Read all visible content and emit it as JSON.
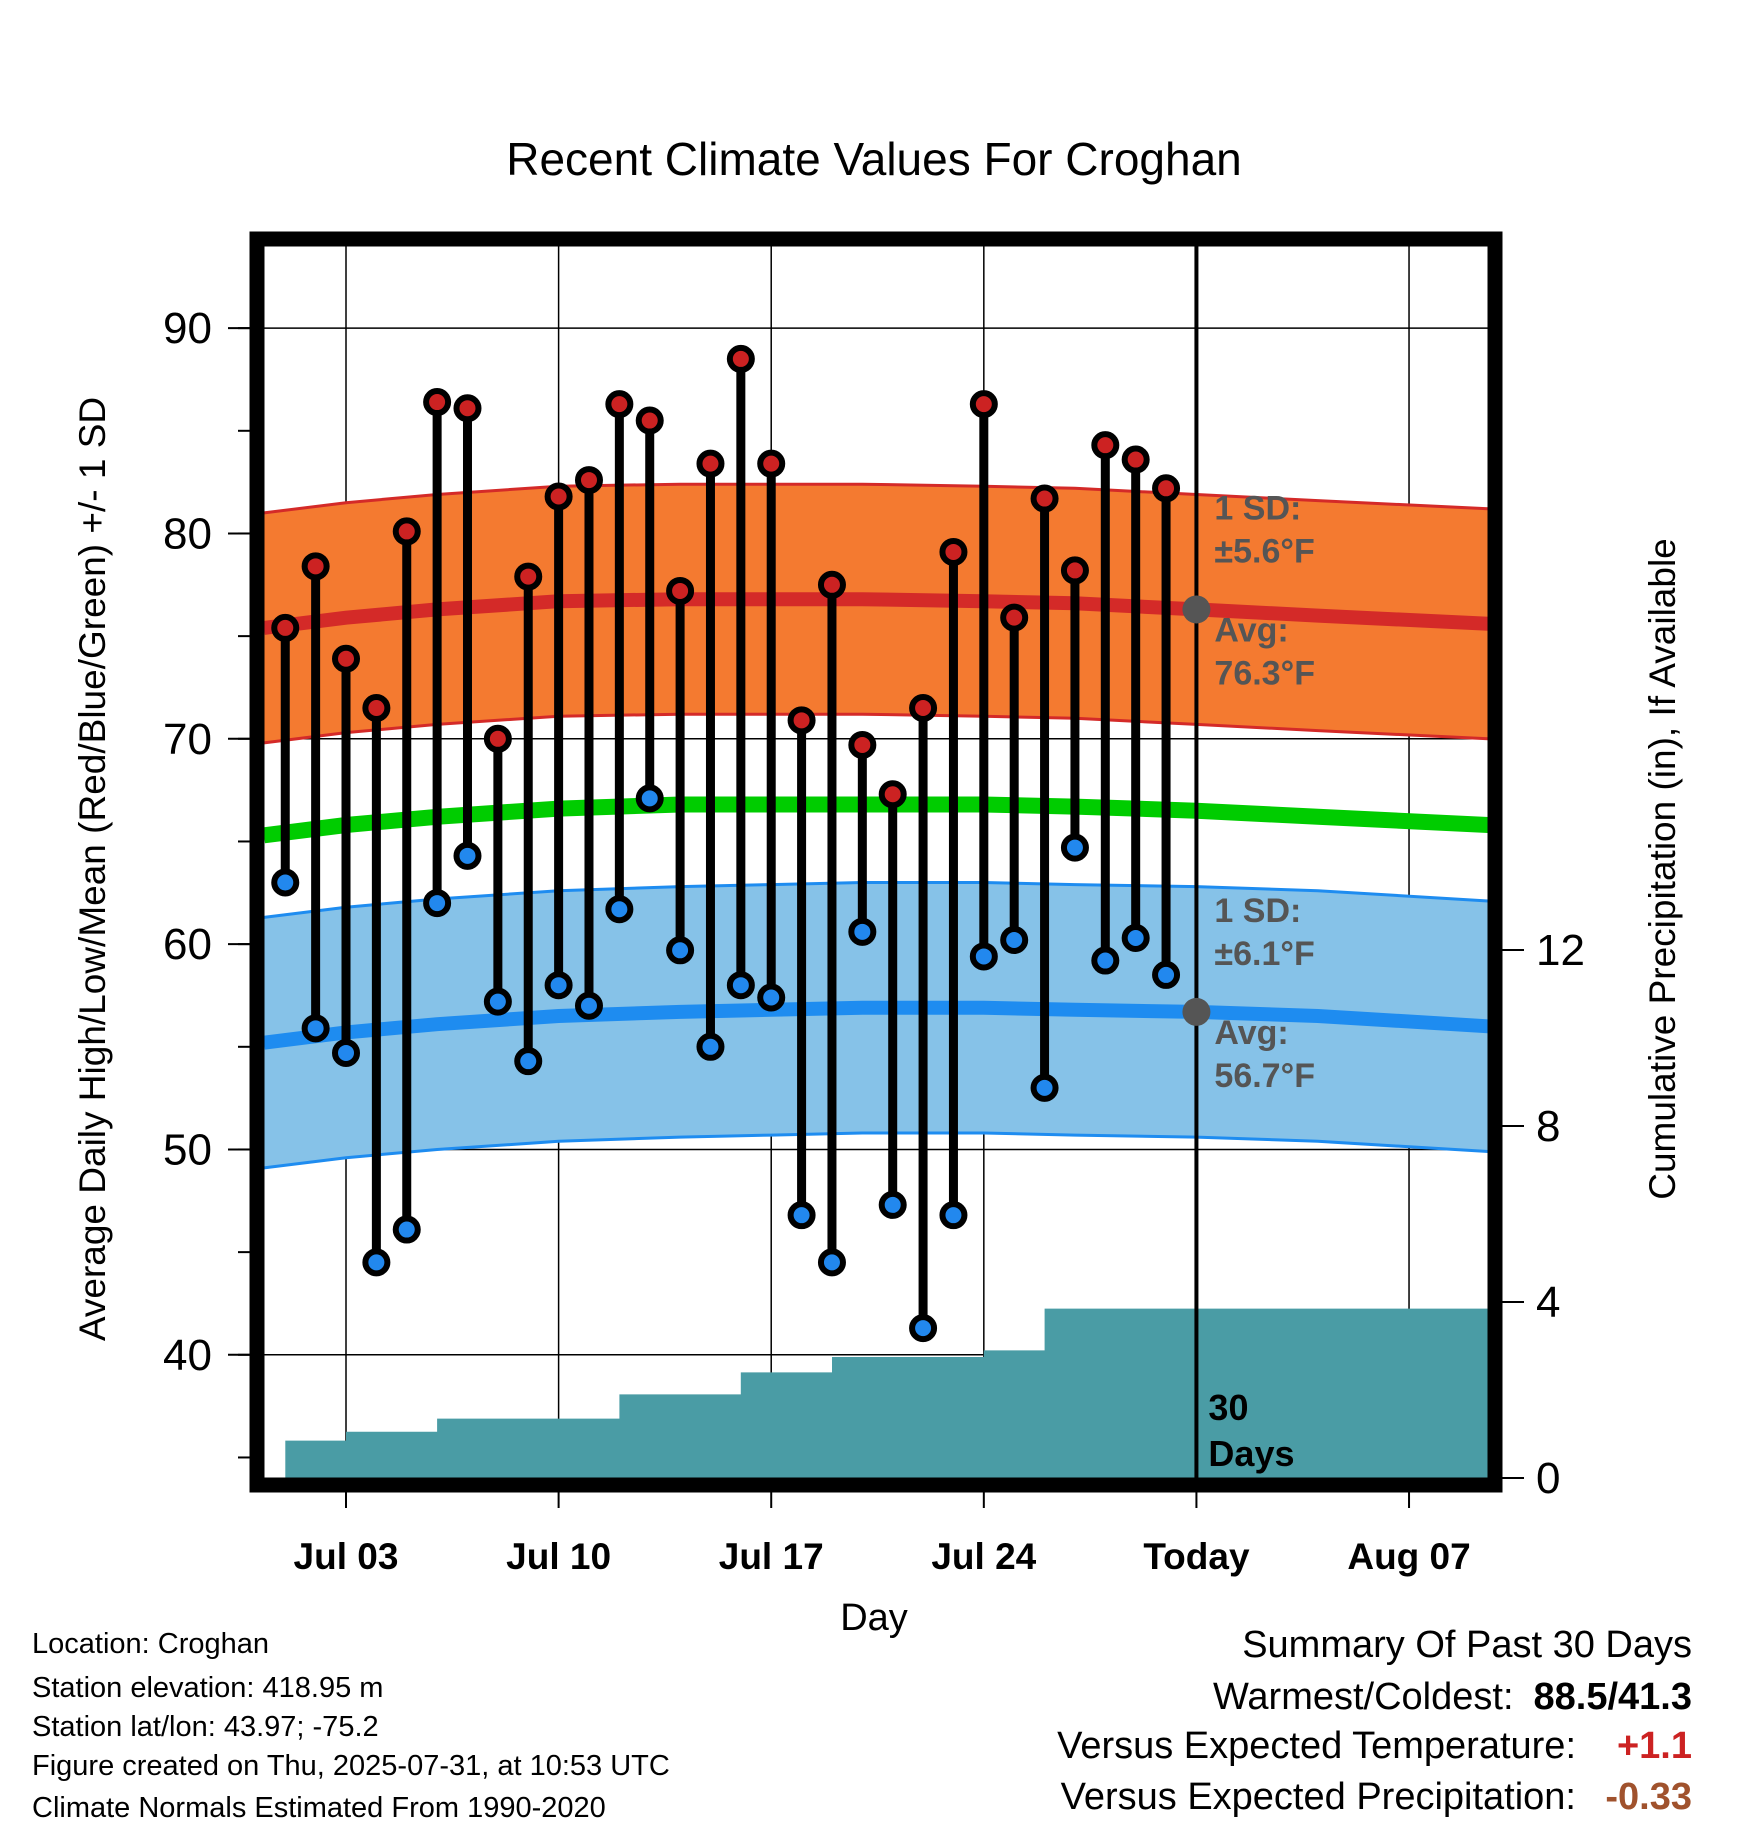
{
  "chart_data": {
    "type": "line",
    "title": "Recent Climate Values For Croghan",
    "xlabel": "Day",
    "ylabel": "Average Daily High/Low/Mean (Red/Blue/Green) +/- 1 SD",
    "y2label": "Cumulative Precipitation (in), If Available",
    "ylim": [
      34,
      94
    ],
    "y2lim": [
      0,
      28
    ],
    "yticks": [
      40,
      50,
      60,
      70,
      80,
      90
    ],
    "y2ticks": [
      0,
      4,
      8,
      12
    ],
    "xticks": [
      {
        "day": 3,
        "label": "Jul 03"
      },
      {
        "day": 10,
        "label": "Jul 10"
      },
      {
        "day": 17,
        "label": "Jul 17"
      },
      {
        "day": 24,
        "label": "Jul 24"
      },
      {
        "day": 31,
        "label": "Today"
      },
      {
        "day": 38,
        "label": "Aug 07"
      }
    ],
    "xrange": [
      0.3,
      40.6
    ],
    "grid": true,
    "days": [
      1,
      2,
      3,
      4,
      5,
      6,
      7,
      8,
      9,
      10,
      11,
      12,
      13,
      14,
      15,
      16,
      17,
      18,
      19,
      20,
      21,
      22,
      23,
      24,
      25,
      26,
      27,
      28,
      29,
      30
    ],
    "observed_high": [
      75.4,
      78.4,
      73.9,
      71.5,
      80.1,
      86.4,
      86.1,
      70.0,
      77.9,
      81.8,
      82.6,
      86.3,
      85.5,
      77.2,
      83.4,
      88.5,
      83.4,
      70.9,
      77.5,
      69.7,
      67.3,
      71.5,
      79.1,
      86.3,
      75.9,
      81.7,
      78.2,
      84.3,
      83.6,
      82.2
    ],
    "observed_low": [
      63.0,
      55.9,
      54.7,
      44.5,
      46.1,
      62.0,
      64.3,
      57.2,
      54.3,
      58.0,
      57.0,
      61.7,
      67.1,
      59.7,
      55.0,
      58.0,
      57.4,
      46.8,
      44.5,
      60.6,
      47.3,
      41.3,
      46.8,
      59.4,
      60.2,
      53.0,
      64.7,
      59.2,
      60.3,
      58.5
    ],
    "normal_x": [
      0.3,
      3,
      6,
      10,
      14,
      17,
      20,
      24,
      27,
      31,
      35,
      40.6
    ],
    "normal_high_avg": [
      75.4,
      75.9,
      76.3,
      76.7,
      76.8,
      76.8,
      76.8,
      76.7,
      76.6,
      76.3,
      76.0,
      75.6
    ],
    "normal_high_sd": 5.6,
    "normal_low_avg": [
      55.2,
      55.7,
      56.1,
      56.5,
      56.7,
      56.8,
      56.9,
      56.9,
      56.8,
      56.7,
      56.5,
      56.0
    ],
    "normal_low_sd": 6.1,
    "normal_mean": [
      65.3,
      65.8,
      66.2,
      66.6,
      66.8,
      66.8,
      66.8,
      66.8,
      66.7,
      66.5,
      66.2,
      65.8
    ],
    "precip_x": [
      0.3,
      1,
      2,
      3,
      4,
      5,
      6,
      7,
      8,
      9,
      10,
      11,
      12,
      13,
      14,
      15,
      16,
      17,
      18,
      19,
      20,
      21,
      22,
      23,
      24,
      25,
      26,
      27,
      28,
      29,
      30,
      31,
      40.6
    ],
    "precip_cumulative": [
      0,
      0.85,
      0.85,
      1.05,
      1.05,
      1.05,
      1.35,
      1.35,
      1.35,
      1.35,
      1.35,
      1.35,
      1.9,
      1.9,
      1.9,
      1.9,
      2.4,
      2.4,
      2.4,
      2.75,
      2.75,
      2.75,
      2.75,
      2.75,
      2.9,
      2.9,
      3.85,
      3.85,
      3.85,
      3.85,
      3.85,
      3.85,
      3.85
    ],
    "annotations": {
      "high_sd_label": "1 SD:",
      "high_sd_value": "±5.6°F",
      "high_avg_label": "Avg:",
      "high_avg_value": "76.3°F",
      "low_sd_label": "1 SD:",
      "low_sd_value": "±6.1°F",
      "low_avg_label": "Avg:",
      "low_avg_value": "56.7°F",
      "days_label_1": "30",
      "days_label_2": "Days"
    },
    "colors": {
      "high_band": "#f47a30",
      "high_line": "#d42a28",
      "low_band": "#86c2e8",
      "low_line": "#1e8cf0",
      "mean_line": "#00cc00",
      "precip": "#4a9ca5",
      "high_dot": "#cc2222",
      "low_dot": "#2288ee",
      "today_dot": "#555555",
      "annotation": "#555555"
    }
  },
  "footer": {
    "location": "Location: Croghan",
    "elevation": "Station elevation: 418.95 m",
    "latlon": "Station lat/lon: 43.97; -75.2",
    "created": "Figure created on Thu, 2025-07-31, at 10:53 UTC",
    "normals": "Climate Normals Estimated From 1990-2020"
  },
  "summary": {
    "title": "Summary Of Past 30 Days",
    "warm_cold_label": "Warmest/Coldest:",
    "warm_cold_value": "88.5/41.3",
    "temp_label": "Versus Expected Temperature:",
    "temp_value": "+1.1",
    "temp_color": "#cc2222",
    "precip_label": "Versus Expected Precipitation:",
    "precip_value": "-0.33",
    "precip_color": "#a0522d"
  }
}
